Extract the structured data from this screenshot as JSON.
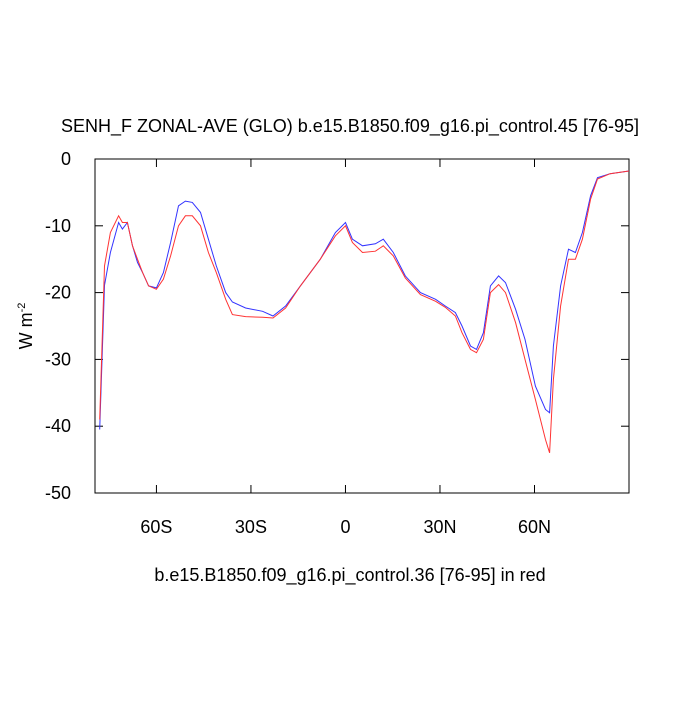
{
  "chart_data": {
    "type": "line",
    "title": "SENH_F ZONAL-AVE (GLO) b.e15.B1850.f09_g16.pi_control.45 [76-95]",
    "subtitle": "b.e15.B1850.f09_g16.pi_control.36 [76-95] in red",
    "ylabel": {
      "text": "W m",
      "superscript": "-2"
    },
    "x": [
      -78,
      -76.5,
      -74.6,
      -72,
      -70.8,
      -69.2,
      -67.6,
      -66,
      -64.4,
      -62.5,
      -60,
      -57.8,
      -55.5,
      -53,
      -50.8,
      -48.6,
      -46,
      -43.5,
      -41,
      -38,
      -35.9,
      -31.7,
      -26.3,
      -23,
      -19,
      -14.3,
      -8,
      -3.2,
      0,
      2.2,
      5.4,
      9.5,
      12,
      15.2,
      19,
      23.8,
      28.6,
      31.7,
      34.9,
      37,
      39.7,
      41.6,
      43.8,
      46,
      48.6,
      50.8,
      54,
      57,
      60.3,
      63.5,
      64.8,
      66,
      68.3,
      70.8,
      73,
      75.2,
      77.8,
      80,
      84,
      90
    ],
    "series": [
      {
        "color": "#3333ff",
        "values": [
          -40.5,
          -18.9,
          -14,
          -9.5,
          -10.5,
          -9.5,
          -13,
          -15.5,
          -17,
          -19,
          -19.3,
          -17,
          -12.5,
          -7,
          -6.3,
          -6.5,
          -8,
          -12,
          -16,
          -20,
          -21.4,
          -22.3,
          -22.8,
          -23.5,
          -22,
          -19,
          -15,
          -11,
          -9.5,
          -12,
          -13,
          -12.7,
          -12,
          -14,
          -17.5,
          -20,
          -21,
          -22,
          -23,
          -25,
          -28,
          -28.5,
          -26,
          -19,
          -17.5,
          -18.5,
          -22.5,
          -27,
          -34,
          -37.5,
          -38,
          -28,
          -19,
          -13.5,
          -14,
          -11,
          -5.5,
          -2.8,
          -2.2,
          -1.8
        ]
      },
      {
        "color": "#ff3333",
        "values": [
          -39,
          -16,
          -11,
          -8.5,
          -9.5,
          -9.5,
          -13,
          -15,
          -17,
          -19,
          -19.5,
          -18,
          -14.5,
          -10,
          -8.5,
          -8.5,
          -10,
          -14,
          -17,
          -21,
          -23.3,
          -23.6,
          -23.7,
          -23.8,
          -22.3,
          -19,
          -15,
          -11.5,
          -10,
          -12.5,
          -14,
          -13.8,
          -13,
          -14.5,
          -17.8,
          -20.3,
          -21.3,
          -22.2,
          -23.5,
          -26,
          -28.5,
          -29,
          -27,
          -20,
          -18.8,
          -20,
          -24.5,
          -30,
          -36,
          -42,
          -44,
          -33,
          -22,
          -15,
          -15,
          -12,
          -6,
          -3,
          -2.2,
          -1.8
        ]
      }
    ],
    "xlim": [
      -79.5,
      90
    ],
    "ylim": [
      -50,
      0
    ],
    "xticks": [
      {
        "value": -60,
        "label": "60S"
      },
      {
        "value": -30,
        "label": "30S"
      },
      {
        "value": 0,
        "label": "0"
      },
      {
        "value": 30,
        "label": "30N"
      },
      {
        "value": 60,
        "label": "60N"
      }
    ],
    "yticks": [
      0,
      -10,
      -20,
      -30,
      -40,
      -50
    ]
  }
}
